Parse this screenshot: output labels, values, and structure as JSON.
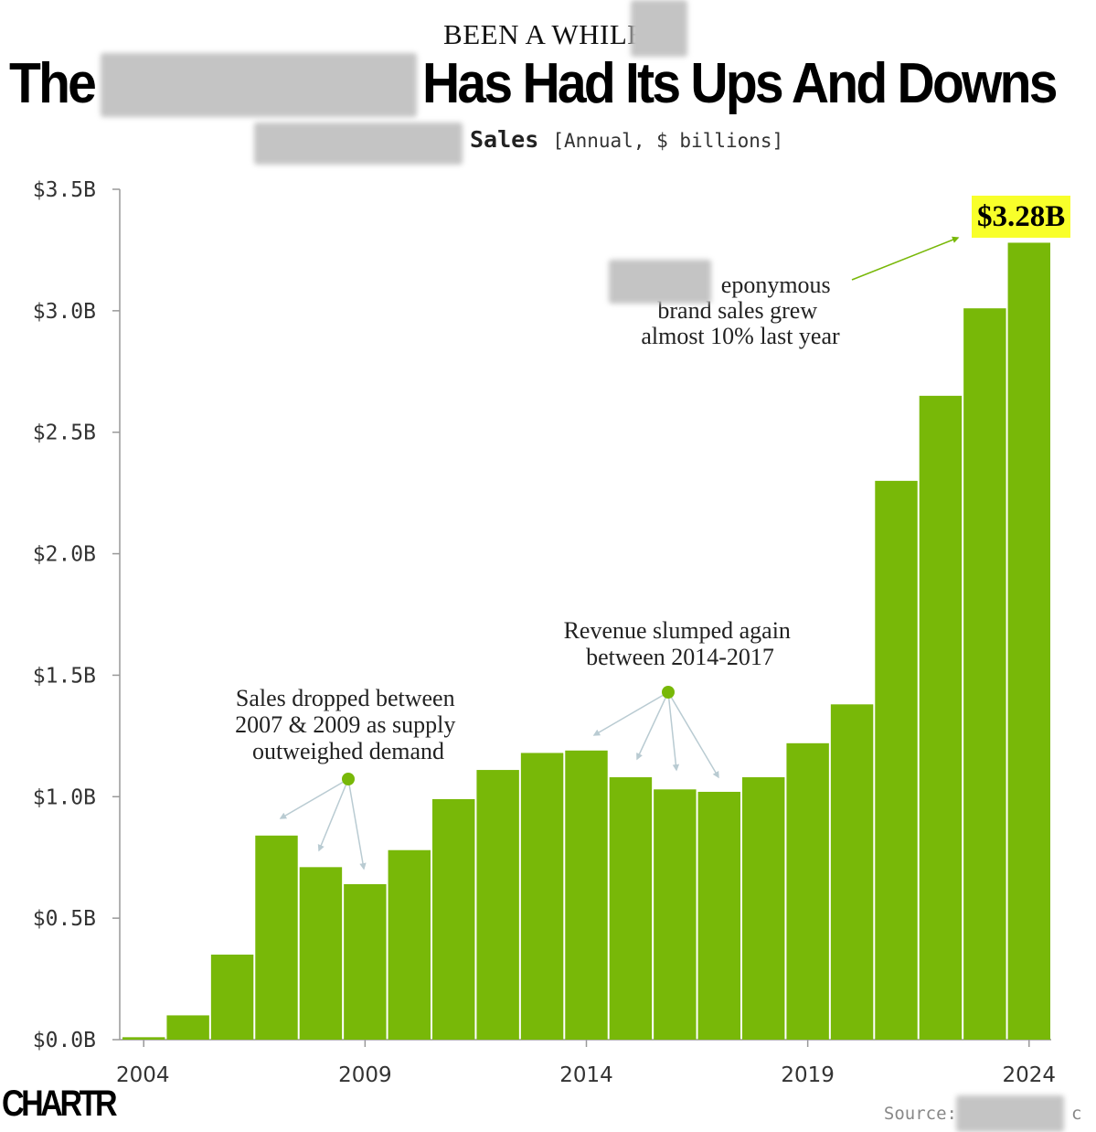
{
  "kicker": "BEEN A WHILE,",
  "title_left": "The",
  "title_right": "Has Had Its Ups And Downs",
  "subtitle_bold": "Sales",
  "subtitle_unit": "[Annual, $ billions]",
  "logo": "CHARTR",
  "source_label": "Source:",
  "source_tail": "c",
  "colors": {
    "bar": "#78b808",
    "callout_bg": "#f8ff2a",
    "arrow": "#b9cbd2",
    "dot": "#78b808"
  },
  "chart_data": {
    "type": "bar",
    "categories": [
      "2004",
      "2005",
      "2006",
      "2007",
      "2008",
      "2009",
      "2010",
      "2011",
      "2012",
      "2013",
      "2014",
      "2015",
      "2016",
      "2017",
      "2018",
      "2019",
      "2020",
      "2021",
      "2022",
      "2023",
      "2024"
    ],
    "values": [
      0.01,
      0.1,
      0.35,
      0.84,
      0.71,
      0.64,
      0.78,
      0.99,
      1.11,
      1.18,
      1.19,
      1.08,
      1.03,
      1.02,
      1.08,
      1.22,
      1.38,
      2.3,
      2.65,
      3.01,
      3.28
    ],
    "ylim": [
      0,
      3.5
    ],
    "y_ticks": [
      0,
      0.5,
      1.0,
      1.5,
      2.0,
      2.5,
      3.0,
      3.5
    ],
    "y_tick_labels": [
      "$0.0B",
      "$0.5B",
      "$1.0B",
      "$1.5B",
      "$2.0B",
      "$2.5B",
      "$3.0B",
      "$3.5B"
    ],
    "x_tick_labels": [
      "2004",
      "2009",
      "2014",
      "2019",
      "2024"
    ],
    "grid": false,
    "callout": "$3.28B",
    "annotations": [
      {
        "lines": [
          "eponymous",
          "brand sales grew",
          "almost 10% last year"
        ]
      },
      {
        "lines": [
          "Sales dropped between",
          "2007 & 2009 as supply",
          "outweighed demand"
        ]
      },
      {
        "lines": [
          "Revenue slumped again",
          "between 2014-2017"
        ]
      }
    ]
  }
}
